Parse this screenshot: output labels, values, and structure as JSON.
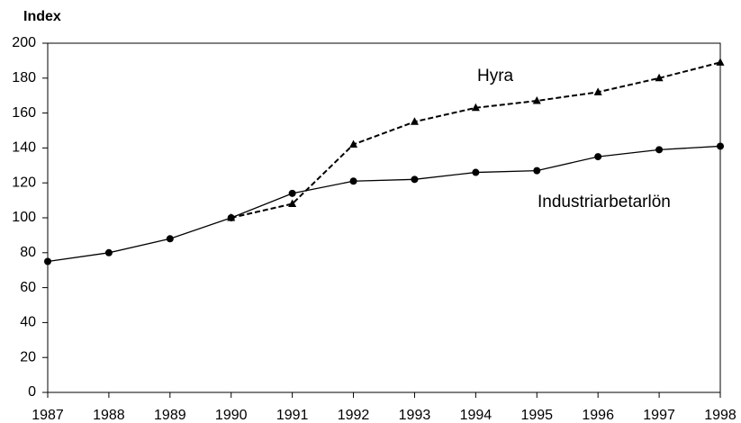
{
  "chart_data": {
    "type": "line",
    "y_label": "Index",
    "x": [
      1987,
      1988,
      1989,
      1990,
      1991,
      1992,
      1993,
      1994,
      1995,
      1996,
      1997,
      1998
    ],
    "xlim": [
      1987,
      1998
    ],
    "xticks": [
      1987,
      1988,
      1989,
      1990,
      1991,
      1992,
      1993,
      1994,
      1995,
      1996,
      1997,
      1998
    ],
    "ylim": [
      0,
      200
    ],
    "yticks": [
      0,
      20,
      40,
      60,
      80,
      100,
      120,
      140,
      160,
      180,
      200
    ],
    "grid": false,
    "series": [
      {
        "name": "Hyra",
        "color": "#000000",
        "dash": true,
        "marker": "triangle",
        "values": [
          null,
          null,
          null,
          100,
          108,
          142,
          155,
          163,
          167,
          172,
          180,
          189
        ]
      },
      {
        "name": "Industriarbetarlön",
        "color": "#000000",
        "dash": false,
        "marker": "circle",
        "values": [
          75,
          80,
          88,
          100,
          114,
          121,
          122,
          126,
          127,
          135,
          139,
          141
        ]
      }
    ]
  }
}
